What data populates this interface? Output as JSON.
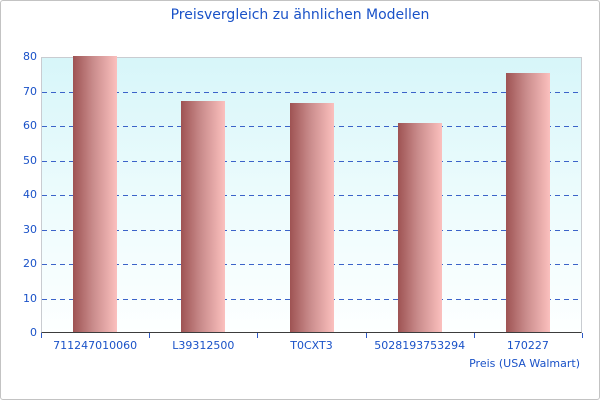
{
  "chart_data": {
    "type": "bar",
    "title": "Preisvergleich zu ähnlichen Modellen",
    "xlabel": "Preis (USA Walmart)",
    "ylabel": "",
    "categories": [
      "711247010060",
      "L39312500",
      "T0CXT3",
      "5028193753294",
      "170227"
    ],
    "values": [
      80,
      67,
      66.5,
      60.5,
      75
    ],
    "ylim": [
      0,
      80
    ],
    "ytick_step": 10,
    "grid": true,
    "grid_style": "dashed",
    "legend_position": "none",
    "colors": {
      "title_text": "#1a52c8",
      "axis_text": "#1a52c8",
      "gridline": "#3b63c9",
      "bar_gradient_left": "#9e5353",
      "bar_gradient_right": "#fbc0be",
      "plot_bg_top": "#d7f6f9",
      "plot_bg_bottom": "#fdffff",
      "axis_line": "#3c3c3c",
      "plot_border": "#c9ccd1",
      "frame_border": "#c3c3c3"
    }
  }
}
